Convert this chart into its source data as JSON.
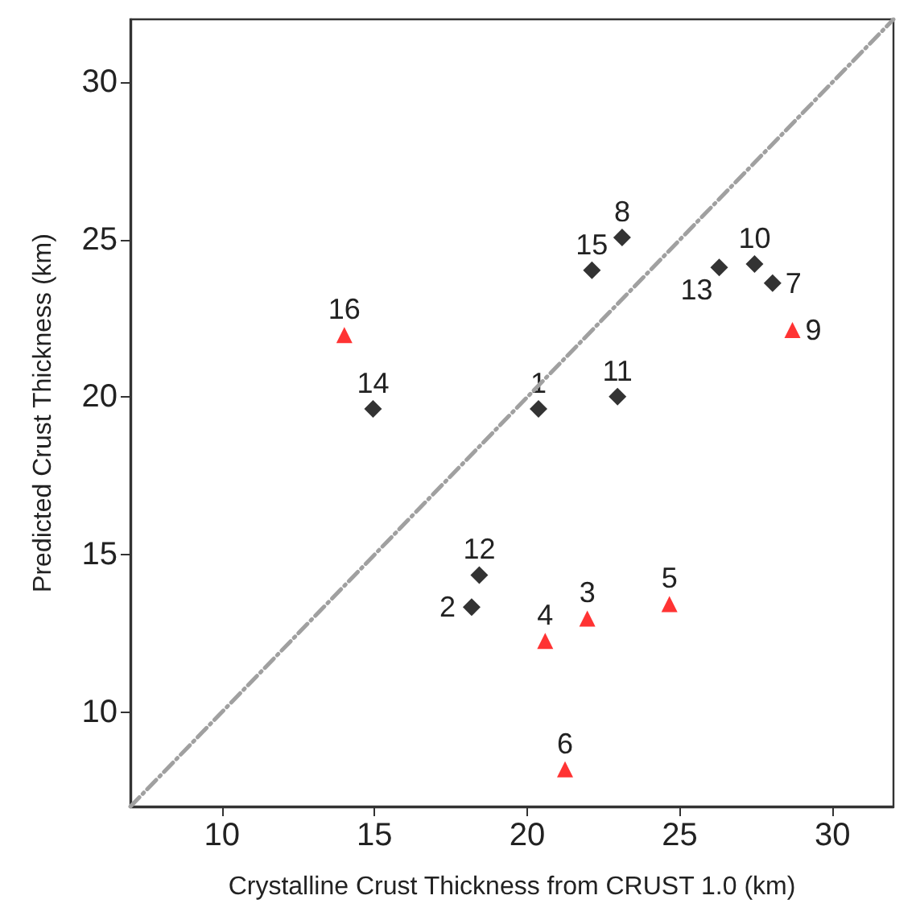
{
  "chart_data": {
    "type": "scatter",
    "xlabel": "Crystalline Crust Thickness from CRUST 1.0 (km)",
    "ylabel": "Predicted Crust Thickness (km)",
    "xlim": [
      7,
      32
    ],
    "ylim": [
      7,
      32
    ],
    "xticks": [
      10,
      15,
      20,
      25,
      30
    ],
    "yticks": [
      10,
      15,
      20,
      25,
      30
    ],
    "grid": false,
    "series": [
      {
        "color": "#000000",
        "marker": "diamond",
        "x": [
          20.37,
          18.18,
          28.04,
          23.11,
          27.45,
          22.96,
          18.43,
          26.29,
          14.95,
          22.12
        ],
        "values": [
          19.63,
          13.33,
          23.62,
          25.07,
          24.23,
          20.02,
          14.35,
          24.12,
          19.63,
          24.03
        ]
      },
      {
        "color": "#ff0000",
        "marker": "triangle",
        "x": [
          21.97,
          20.59,
          24.66,
          21.24,
          28.69,
          14.01
        ],
        "values": [
          12.97,
          12.26,
          13.43,
          8.18,
          22.13,
          21.97
        ]
      },
      {
        "type": "line",
        "color": "#a0a0a0",
        "line_style": "dashed",
        "marker": "none",
        "x": [
          7,
          32
        ],
        "values": [
          7,
          32
        ]
      }
    ],
    "annotations": [
      {
        "text": "1",
        "x": 20.37,
        "y": 19.63
      },
      {
        "text": "2",
        "x": 18.18,
        "y": 13.33
      },
      {
        "text": "3",
        "x": 21.97,
        "y": 12.97
      },
      {
        "text": "4",
        "x": 20.59,
        "y": 12.26
      },
      {
        "text": "5",
        "x": 24.66,
        "y": 13.43
      },
      {
        "text": "6",
        "x": 21.24,
        "y": 8.18
      },
      {
        "text": "7",
        "x": 28.04,
        "y": 23.62
      },
      {
        "text": "8",
        "x": 23.11,
        "y": 25.07
      },
      {
        "text": "9",
        "x": 28.69,
        "y": 22.13
      },
      {
        "text": "10",
        "x": 27.45,
        "y": 24.23
      },
      {
        "text": "11",
        "x": 22.96,
        "y": 20.02
      },
      {
        "text": "12",
        "x": 18.43,
        "y": 14.35
      },
      {
        "text": "13",
        "x": 26.29,
        "y": 24.12
      },
      {
        "text": "14",
        "x": 14.95,
        "y": 19.63
      },
      {
        "text": "15",
        "x": 22.12,
        "y": 24.03
      },
      {
        "text": "16",
        "x": 14.01,
        "y": 21.97
      }
    ]
  }
}
